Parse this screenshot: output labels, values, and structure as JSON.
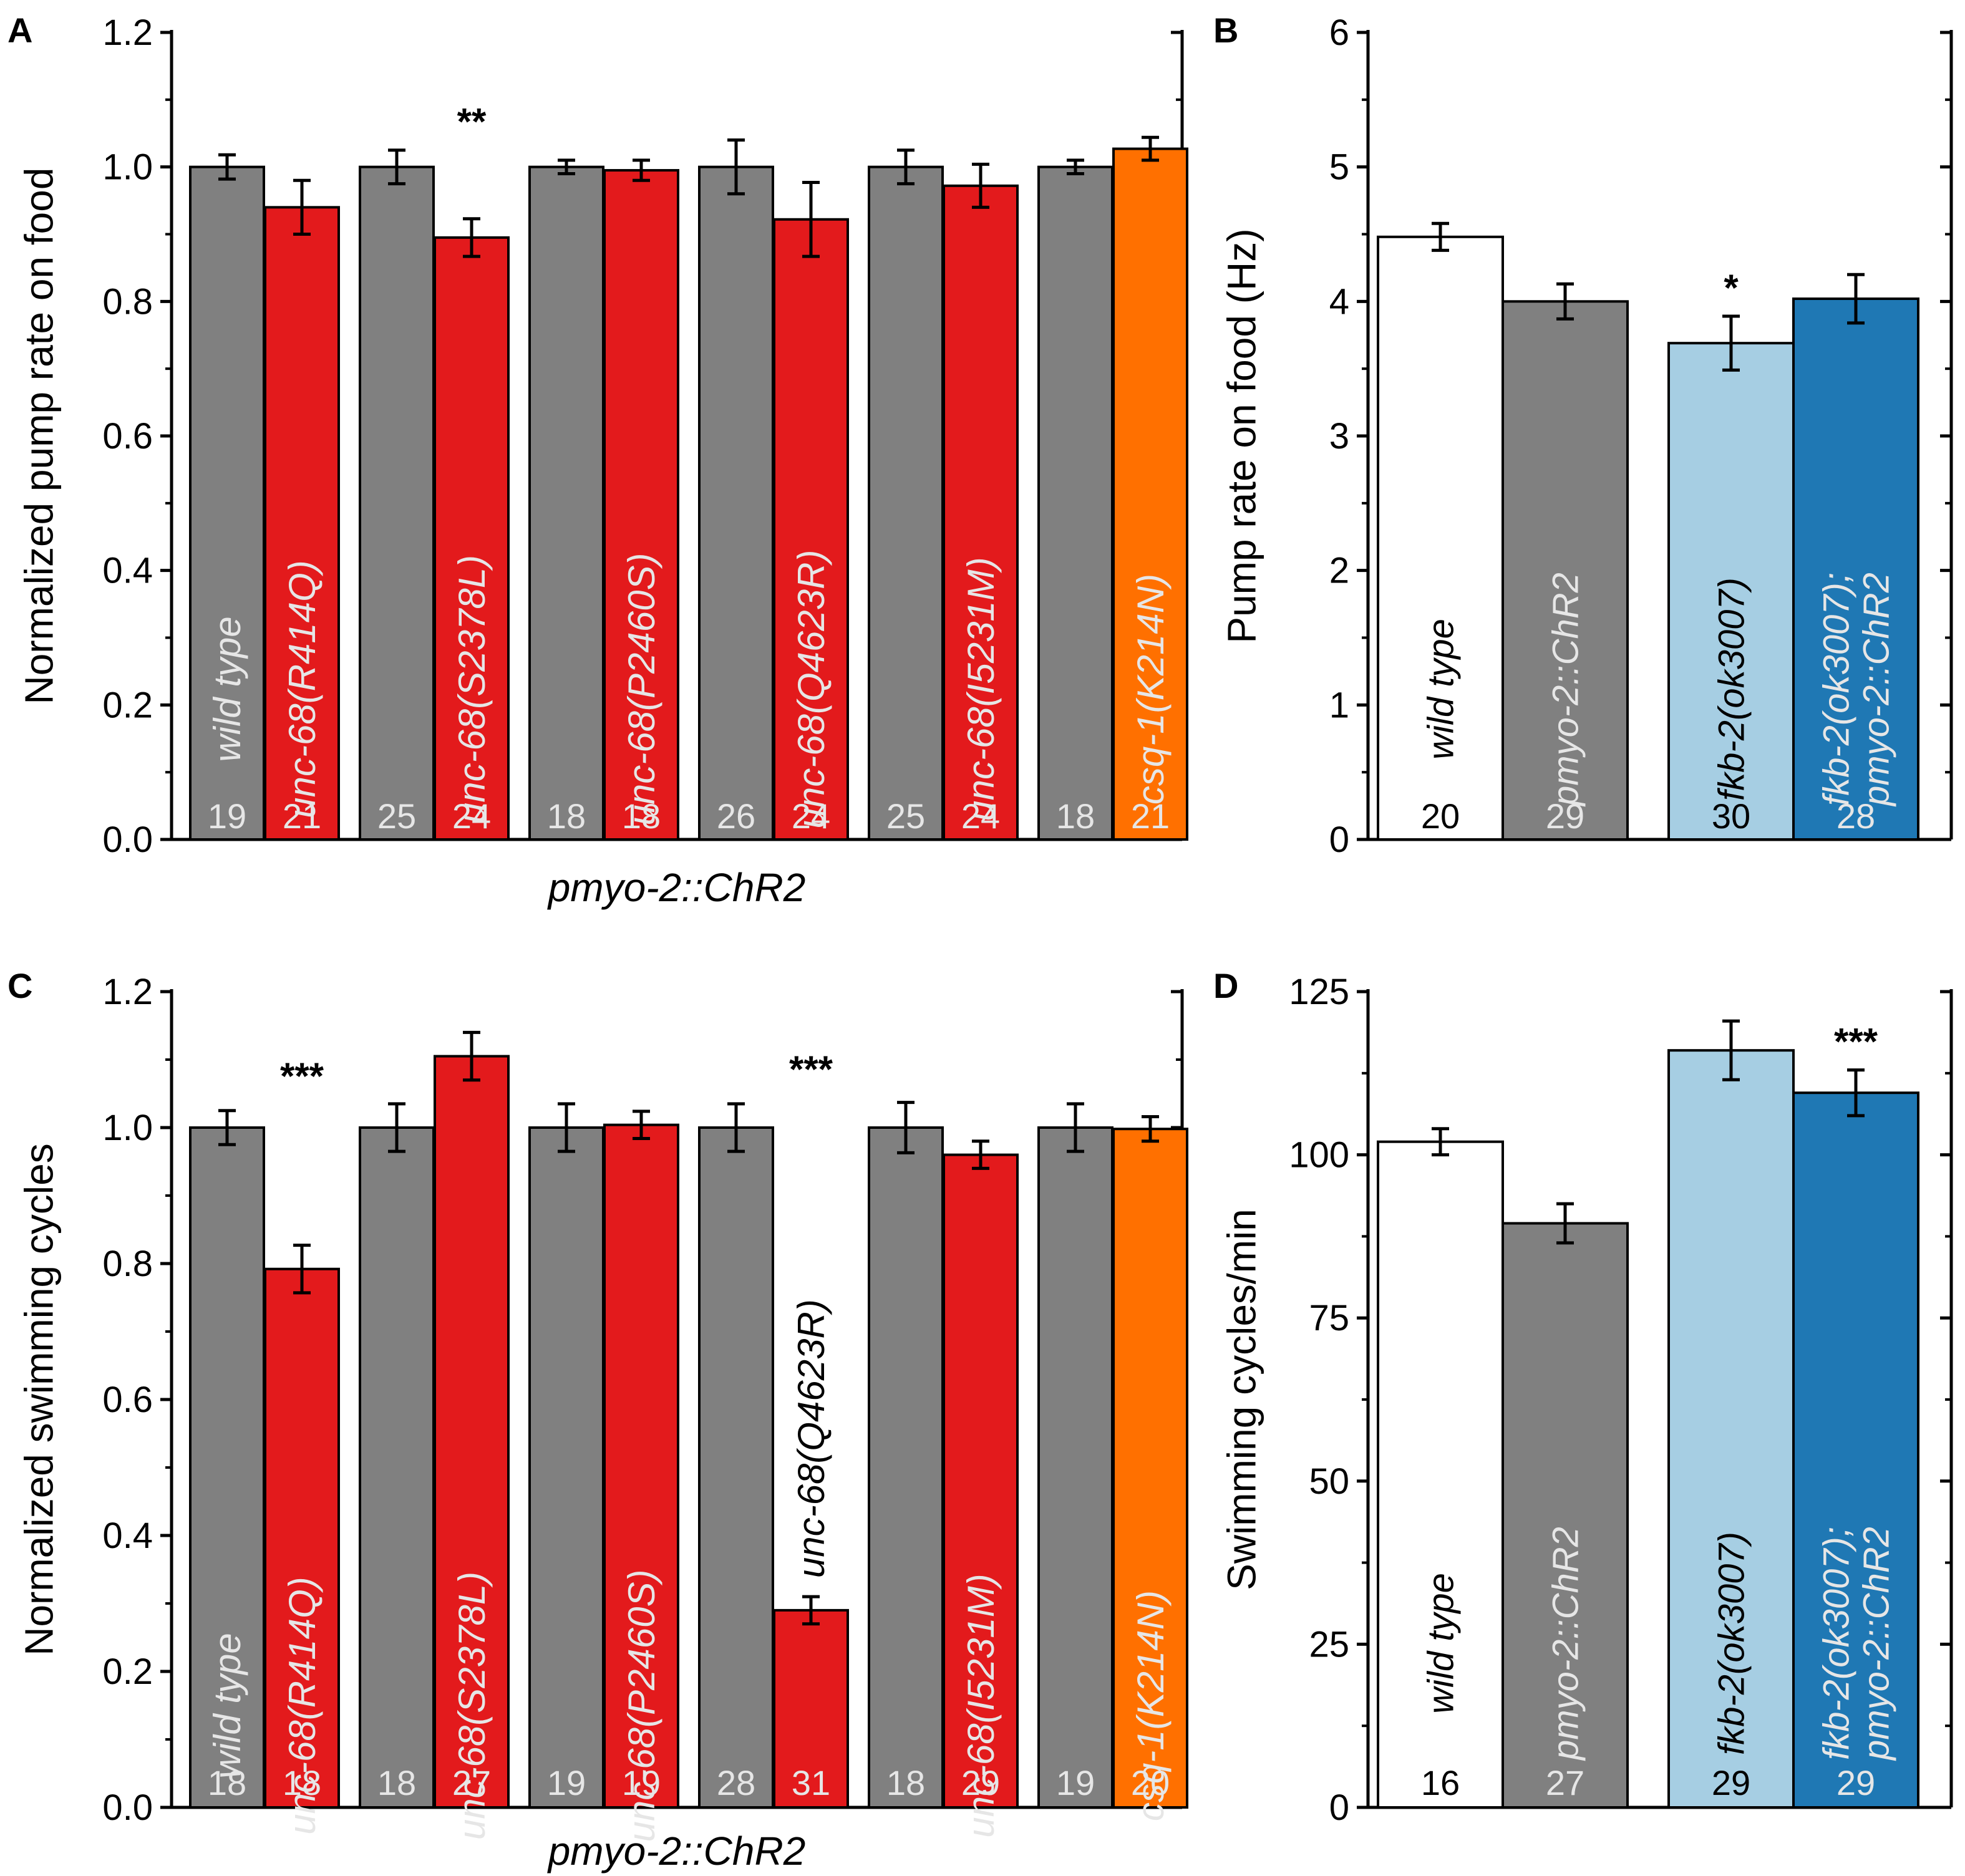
{
  "colors": {
    "gray": "#808080",
    "red": "#e31a1c",
    "orange": "#ff7000",
    "white": "#ffffff",
    "light_blue": "#a6cee3",
    "dark_blue": "#1f78b4",
    "label_light": "#e6e6e6",
    "label_dark": "#000000"
  },
  "chart_data": [
    {
      "panel": "A",
      "type": "bar",
      "ylabel": "Normalized pump rate on food",
      "xlabel": "pmyo-2::ChR2",
      "ylim": [
        0,
        1.2
      ],
      "yticks": [
        0.0,
        0.2,
        0.4,
        0.6,
        0.8,
        1.0,
        1.2
      ],
      "tick_decimals": 1,
      "groups": [
        {
          "bars": [
            {
              "label": "wild  type",
              "value": 1.0,
              "err": 0.018,
              "n": "19",
              "color": "gray"
            },
            {
              "label": "unc-68(R414Q)",
              "value": 0.94,
              "err": 0.04,
              "n": "21",
              "color": "red"
            }
          ]
        },
        {
          "sig": "**",
          "bars": [
            {
              "label": "",
              "value": 1.0,
              "err": 0.025,
              "n": "25",
              "color": "gray"
            },
            {
              "label": "unc-68(S2378L)",
              "value": 0.895,
              "err": 0.028,
              "n": "24",
              "color": "red"
            }
          ]
        },
        {
          "bars": [
            {
              "label": "",
              "value": 1.0,
              "err": 0.01,
              "n": "18",
              "color": "gray"
            },
            {
              "label": "unc-68(P2460S)",
              "value": 0.995,
              "err": 0.015,
              "n": "18",
              "color": "red"
            }
          ]
        },
        {
          "bars": [
            {
              "label": "",
              "value": 1.0,
              "err": 0.04,
              "n": "26",
              "color": "gray"
            },
            {
              "label": "unc-68(Q4623R)",
              "value": 0.922,
              "err": 0.055,
              "n": "24",
              "color": "red"
            }
          ]
        },
        {
          "bars": [
            {
              "label": "",
              "value": 1.0,
              "err": 0.025,
              "n": "25",
              "color": "gray"
            },
            {
              "label": "unc-68(I5231M)",
              "value": 0.972,
              "err": 0.032,
              "n": "24",
              "color": "red"
            }
          ]
        },
        {
          "bars": [
            {
              "label": "",
              "value": 1.0,
              "err": 0.01,
              "n": "18",
              "color": "gray"
            },
            {
              "label": "csq-1(K214N)",
              "value": 1.027,
              "err": 0.017,
              "n": "21",
              "color": "orange"
            }
          ]
        }
      ]
    },
    {
      "panel": "B",
      "type": "bar",
      "ylabel": "Pump rate on food (Hz)",
      "xlabel": "",
      "ylim": [
        0,
        6
      ],
      "yticks": [
        0,
        1,
        2,
        3,
        4,
        5,
        6
      ],
      "tick_decimals": 0,
      "groups": [
        {
          "bars": [
            {
              "label": "wild type",
              "value": 4.48,
              "err": 0.1,
              "n": "20",
              "color": "white"
            },
            {
              "label": "pmyo-2::ChR2",
              "value": 4.0,
              "err": 0.13,
              "n": "29",
              "color": "gray"
            }
          ]
        },
        {
          "bars": [
            {
              "label": "fkb-2(ok3007)",
              "value": 3.69,
              "err": 0.2,
              "n": "30",
              "color": "light_blue",
              "sig": "*"
            },
            {
              "label": "fkb-2(ok3007);",
              "label2": "pmyo-2::ChR2",
              "value": 4.02,
              "err": 0.18,
              "n": "28",
              "color": "dark_blue"
            }
          ]
        }
      ]
    },
    {
      "panel": "C",
      "type": "bar",
      "ylabel": "Normalized swimming cycles",
      "xlabel": "pmyo-2::ChR2",
      "ylim": [
        0,
        1.2
      ],
      "yticks": [
        0.0,
        0.2,
        0.4,
        0.6,
        0.8,
        1.0,
        1.2
      ],
      "tick_decimals": 1,
      "groups": [
        {
          "sig": "***",
          "bars": [
            {
              "label": "wild type",
              "value": 1.0,
              "err": 0.025,
              "n": "18",
              "color": "gray"
            },
            {
              "label": "unc-68(R414Q)",
              "value": 0.792,
              "err": 0.035,
              "n": "18",
              "color": "red"
            }
          ]
        },
        {
          "bars": [
            {
              "label": "",
              "value": 1.0,
              "err": 0.035,
              "n": "18",
              "color": "gray"
            },
            {
              "label": "unc-68(S2378L)",
              "value": 1.105,
              "err": 0.035,
              "n": "27",
              "color": "red"
            }
          ]
        },
        {
          "bars": [
            {
              "label": "",
              "value": 1.0,
              "err": 0.035,
              "n": "19",
              "color": "gray"
            },
            {
              "label": "unc-68(P2460S)",
              "value": 1.004,
              "err": 0.02,
              "n": "19",
              "color": "red"
            }
          ]
        },
        {
          "sig": "***",
          "bars": [
            {
              "label": "",
              "value": 1.0,
              "err": 0.035,
              "n": "28",
              "color": "gray"
            },
            {
              "label": "unc-68(Q4623R)",
              "value": 0.29,
              "err": 0.02,
              "n": "31",
              "color": "red",
              "label_outside": true
            }
          ]
        },
        {
          "bars": [
            {
              "label": "",
              "value": 1.0,
              "err": 0.037,
              "n": "18",
              "color": "gray"
            },
            {
              "label": "unc-68(I5231M)",
              "value": 0.96,
              "err": 0.02,
              "n": "29",
              "color": "red"
            }
          ]
        },
        {
          "bars": [
            {
              "label": "",
              "value": 1.0,
              "err": 0.035,
              "n": "19",
              "color": "gray"
            },
            {
              "label": "csq-1(K214N)",
              "value": 0.998,
              "err": 0.018,
              "n": "20",
              "color": "orange"
            }
          ]
        }
      ]
    },
    {
      "panel": "D",
      "type": "bar",
      "ylabel": "Swimming cycles/min",
      "xlabel": "",
      "ylim": [
        0,
        125
      ],
      "yticks": [
        0,
        25,
        50,
        75,
        100,
        125
      ],
      "tick_decimals": 0,
      "groups": [
        {
          "bars": [
            {
              "label": "wild type",
              "value": 102,
              "err": 2,
              "n": "16",
              "color": "white"
            },
            {
              "label": "pmyo-2::ChR2",
              "value": 89.5,
              "err": 3,
              "n": "27",
              "color": "gray"
            }
          ]
        },
        {
          "bars": [
            {
              "label": "fkb-2(ok3007)",
              "value": 116,
              "err": 4.5,
              "n": "29",
              "color": "light_blue"
            },
            {
              "label": "fkb-2(ok3007);",
              "label2": "pmyo-2::ChR2",
              "value": 109.5,
              "err": 3.5,
              "n": "29",
              "color": "dark_blue",
              "sig": "***"
            }
          ]
        }
      ]
    }
  ]
}
